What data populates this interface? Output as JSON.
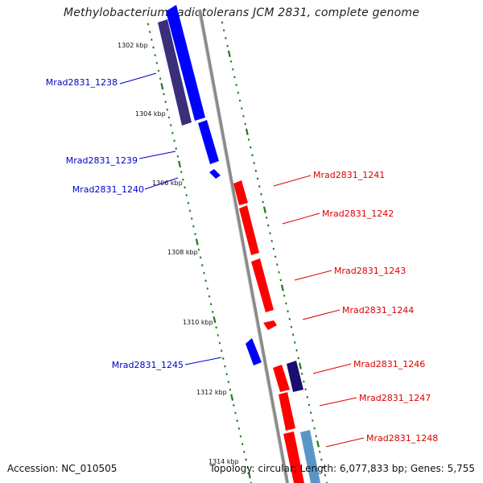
{
  "title": "Methylobacterium radiotolerans JCM 2831, complete genome",
  "footer": {
    "accession": "Accession: NC_010505",
    "summary": "Topology: circular; Length: 6,077,833 bp; Genes: 5,755"
  },
  "colors": {
    "backbone": "#8a8a8a",
    "tick": "#1e7a1e",
    "plus_strand": "#ff0000",
    "minus_strand": "#0000ff",
    "minus_dark": "#3a2f7a",
    "plus_dark": "#1a0f70",
    "light_blue": "#5a95c8",
    "label_plus": "#dd0000",
    "label_minus": "#0000cc"
  },
  "kbp_labels": [
    "1302 kbp",
    "1304 kbp",
    "1306 kbp",
    "1308 kbp",
    "1310 kbp",
    "1312 kbp",
    "1314 kbp"
  ],
  "gene_labels": [
    {
      "id": "Mrad2831_1238",
      "strand": "minus"
    },
    {
      "id": "Mrad2831_1239",
      "strand": "minus"
    },
    {
      "id": "Mrad2831_1240",
      "strand": "minus"
    },
    {
      "id": "Mrad2831_1241",
      "strand": "plus"
    },
    {
      "id": "Mrad2831_1242",
      "strand": "plus"
    },
    {
      "id": "Mrad2831_1243",
      "strand": "plus"
    },
    {
      "id": "Mrad2831_1244",
      "strand": "plus"
    },
    {
      "id": "Mrad2831_1245",
      "strand": "minus"
    },
    {
      "id": "Mrad2831_1246",
      "strand": "plus"
    },
    {
      "id": "Mrad2831_1247",
      "strand": "plus"
    },
    {
      "id": "Mrad2831_1248",
      "strand": "plus"
    }
  ]
}
